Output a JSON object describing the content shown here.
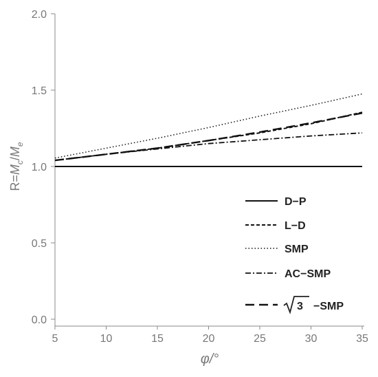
{
  "chart_data": {
    "type": "line",
    "title": "",
    "xlabel": "φ/°",
    "ylabel_parts": {
      "prefix": "R=",
      "m1": "M",
      "sub1": "c",
      "slash": "/",
      "m2": "M",
      "sub2": "e"
    },
    "xlim": [
      5,
      35
    ],
    "ylim": [
      0,
      2.0
    ],
    "x_ticks": [
      5,
      10,
      15,
      20,
      25,
      30,
      35
    ],
    "x_tick_labels": [
      "5",
      "10",
      "15",
      "20",
      "25",
      "30",
      "35"
    ],
    "y_ticks": [
      0.0,
      0.5,
      1.0,
      1.5,
      2.0
    ],
    "y_tick_labels": [
      "0.0",
      "0.5",
      "1.0",
      "1.5",
      "2.0"
    ],
    "grid": false,
    "legend_position": "bottom-right",
    "series": [
      {
        "name": "D−P",
        "style": "solid",
        "x": [
          5,
          35
        ],
        "y": [
          1.0,
          1.0
        ]
      },
      {
        "name": "L−D",
        "style": "dashed",
        "x": [
          5,
          10,
          15,
          20,
          25,
          30,
          35
        ],
        "y": [
          1.04,
          1.08,
          1.12,
          1.17,
          1.22,
          1.28,
          1.355
        ]
      },
      {
        "name": "SMP",
        "style": "dotted",
        "x": [
          5,
          10,
          15,
          20,
          25,
          30,
          35
        ],
        "y": [
          1.055,
          1.12,
          1.185,
          1.255,
          1.33,
          1.4,
          1.475
        ]
      },
      {
        "name": "AC−SMP",
        "style": "dashdot",
        "x": [
          5,
          10,
          15,
          20,
          25,
          30,
          35
        ],
        "y": [
          1.04,
          1.08,
          1.115,
          1.15,
          1.175,
          1.2,
          1.22
        ]
      },
      {
        "name": "√3 −SMP",
        "style": "longdash",
        "x": [
          5,
          10,
          15,
          20,
          25,
          30,
          35
        ],
        "y": [
          1.04,
          1.08,
          1.12,
          1.17,
          1.225,
          1.285,
          1.35
        ]
      }
    ]
  },
  "legend_labels": {
    "dp": "D−P",
    "ld": "L−D",
    "smp": "SMP",
    "acsmp": "AC−SMP",
    "sqrt3_radicand": "3",
    "sqrt3_suffix": "−SMP"
  }
}
